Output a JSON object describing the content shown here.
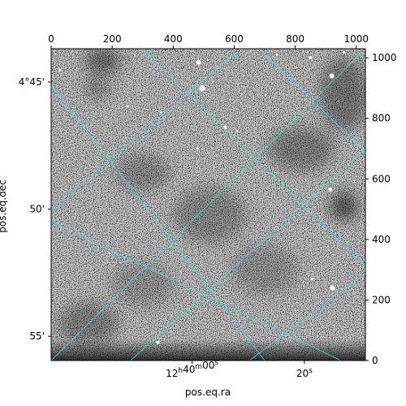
{
  "chart_data": {
    "type": "heatmap",
    "image_description": "grayscale astronomical sky image with cyan RA/Dec coordinate grid overlay",
    "colors": {
      "background_low": "#f2f2f2",
      "background_high": "#0a0a0a",
      "grid": "#40e0e0",
      "axes": "#000000"
    },
    "pixel_axes": {
      "x": {
        "range": [
          0,
          1030
        ],
        "ticks": [
          0,
          200,
          400,
          600,
          800,
          1000
        ],
        "labels": [
          "0",
          "200",
          "400",
          "600",
          "800",
          "1000"
        ],
        "position": "top"
      },
      "y": {
        "range": [
          0,
          1030
        ],
        "ticks": [
          0,
          200,
          400,
          600,
          800,
          1000
        ],
        "labels": [
          "0",
          "200",
          "400",
          "600",
          "800",
          "1000"
        ],
        "position": "right"
      }
    },
    "world_axes": {
      "xlabel": "pos.eq.ra",
      "ylabel": "pos.eq.dec",
      "ra_ticks": [
        {
          "label_parts": [
            "12",
            "h",
            "40",
            "m",
            "00",
            "s"
          ],
          "pixel": [
            462,
            0
          ]
        },
        {
          "label_parts": [
            "20",
            "s"
          ],
          "pixel": [
            830,
            0
          ]
        }
      ],
      "dec_ticks": [
        {
          "label": "4°45'",
          "pixel": [
            0,
            920
          ]
        },
        {
          "label": "50'",
          "pixel": [
            0,
            500
          ]
        },
        {
          "label": "55'",
          "pixel": [
            0,
            80
          ]
        }
      ]
    },
    "grid": true,
    "grid_lines": {
      "ra": [
        {
          "from": [
            1030,
            1030
          ],
          "to": [
            0,
            0
          ]
        },
        {
          "from": [
            620,
            1030
          ],
          "to": [
            0,
            500
          ]
        },
        {
          "from": [
            1030,
            700
          ],
          "to": [
            260,
            0
          ]
        },
        {
          "from": [
            1030,
            290
          ],
          "to": [
            650,
            0
          ]
        }
      ],
      "dec": [
        {
          "from": [
            0,
            910
          ],
          "to": [
            700,
            0
          ]
        },
        {
          "from": [
            0,
            460
          ],
          "to": [
            950,
            0
          ]
        },
        {
          "from": [
            300,
            1030
          ],
          "to": [
            1030,
            310
          ]
        },
        {
          "from": [
            680,
            1030
          ],
          "to": [
            1030,
            690
          ]
        }
      ]
    },
    "sources": [
      {
        "x": 483,
        "y": 985,
        "r": 3
      },
      {
        "x": 495,
        "y": 900,
        "r": 3.5
      },
      {
        "x": 920,
        "y": 940,
        "r": 3
      },
      {
        "x": 915,
        "y": 565,
        "r": 2.5
      },
      {
        "x": 922,
        "y": 240,
        "r": 3
      },
      {
        "x": 850,
        "y": 1000,
        "r": 2
      },
      {
        "x": 570,
        "y": 770,
        "r": 2
      },
      {
        "x": 250,
        "y": 840,
        "r": 1.5
      },
      {
        "x": 480,
        "y": 700,
        "r": 1.5
      },
      {
        "x": 350,
        "y": 60,
        "r": 2
      },
      {
        "x": 855,
        "y": 270,
        "r": 1.5
      },
      {
        "x": 30,
        "y": 960,
        "r": 1.5
      },
      {
        "x": 740,
        "y": 1010,
        "r": 1.5
      },
      {
        "x": 960,
        "y": 1018,
        "r": 1.5
      },
      {
        "x": 190,
        "y": 355,
        "r": 1.2
      },
      {
        "x": 610,
        "y": 760,
        "r": 1.2
      },
      {
        "x": 530,
        "y": 920,
        "r": 1.2
      },
      {
        "x": 360,
        "y": 820,
        "r": 1.2
      }
    ],
    "dark_blobs": [
      {
        "x": 960,
        "y": 510,
        "rx": 45,
        "ry": 45,
        "alpha": 0.55
      },
      {
        "x": 170,
        "y": 990,
        "rx": 60,
        "ry": 40,
        "alpha": 0.45
      },
      {
        "x": 150,
        "y": 900,
        "rx": 40,
        "ry": 30,
        "alpha": 0.35
      },
      {
        "x": 820,
        "y": 700,
        "rx": 110,
        "ry": 70,
        "alpha": 0.3
      },
      {
        "x": 520,
        "y": 480,
        "rx": 120,
        "ry": 90,
        "alpha": 0.25
      },
      {
        "x": 300,
        "y": 620,
        "rx": 90,
        "ry": 60,
        "alpha": 0.25
      },
      {
        "x": 120,
        "y": 120,
        "rx": 100,
        "ry": 70,
        "alpha": 0.3
      },
      {
        "x": 960,
        "y": 880,
        "rx": 80,
        "ry": 120,
        "alpha": 0.35
      },
      {
        "x": 700,
        "y": 300,
        "rx": 110,
        "ry": 80,
        "alpha": 0.2
      },
      {
        "x": 300,
        "y": 250,
        "rx": 100,
        "ry": 70,
        "alpha": 0.2
      }
    ]
  }
}
